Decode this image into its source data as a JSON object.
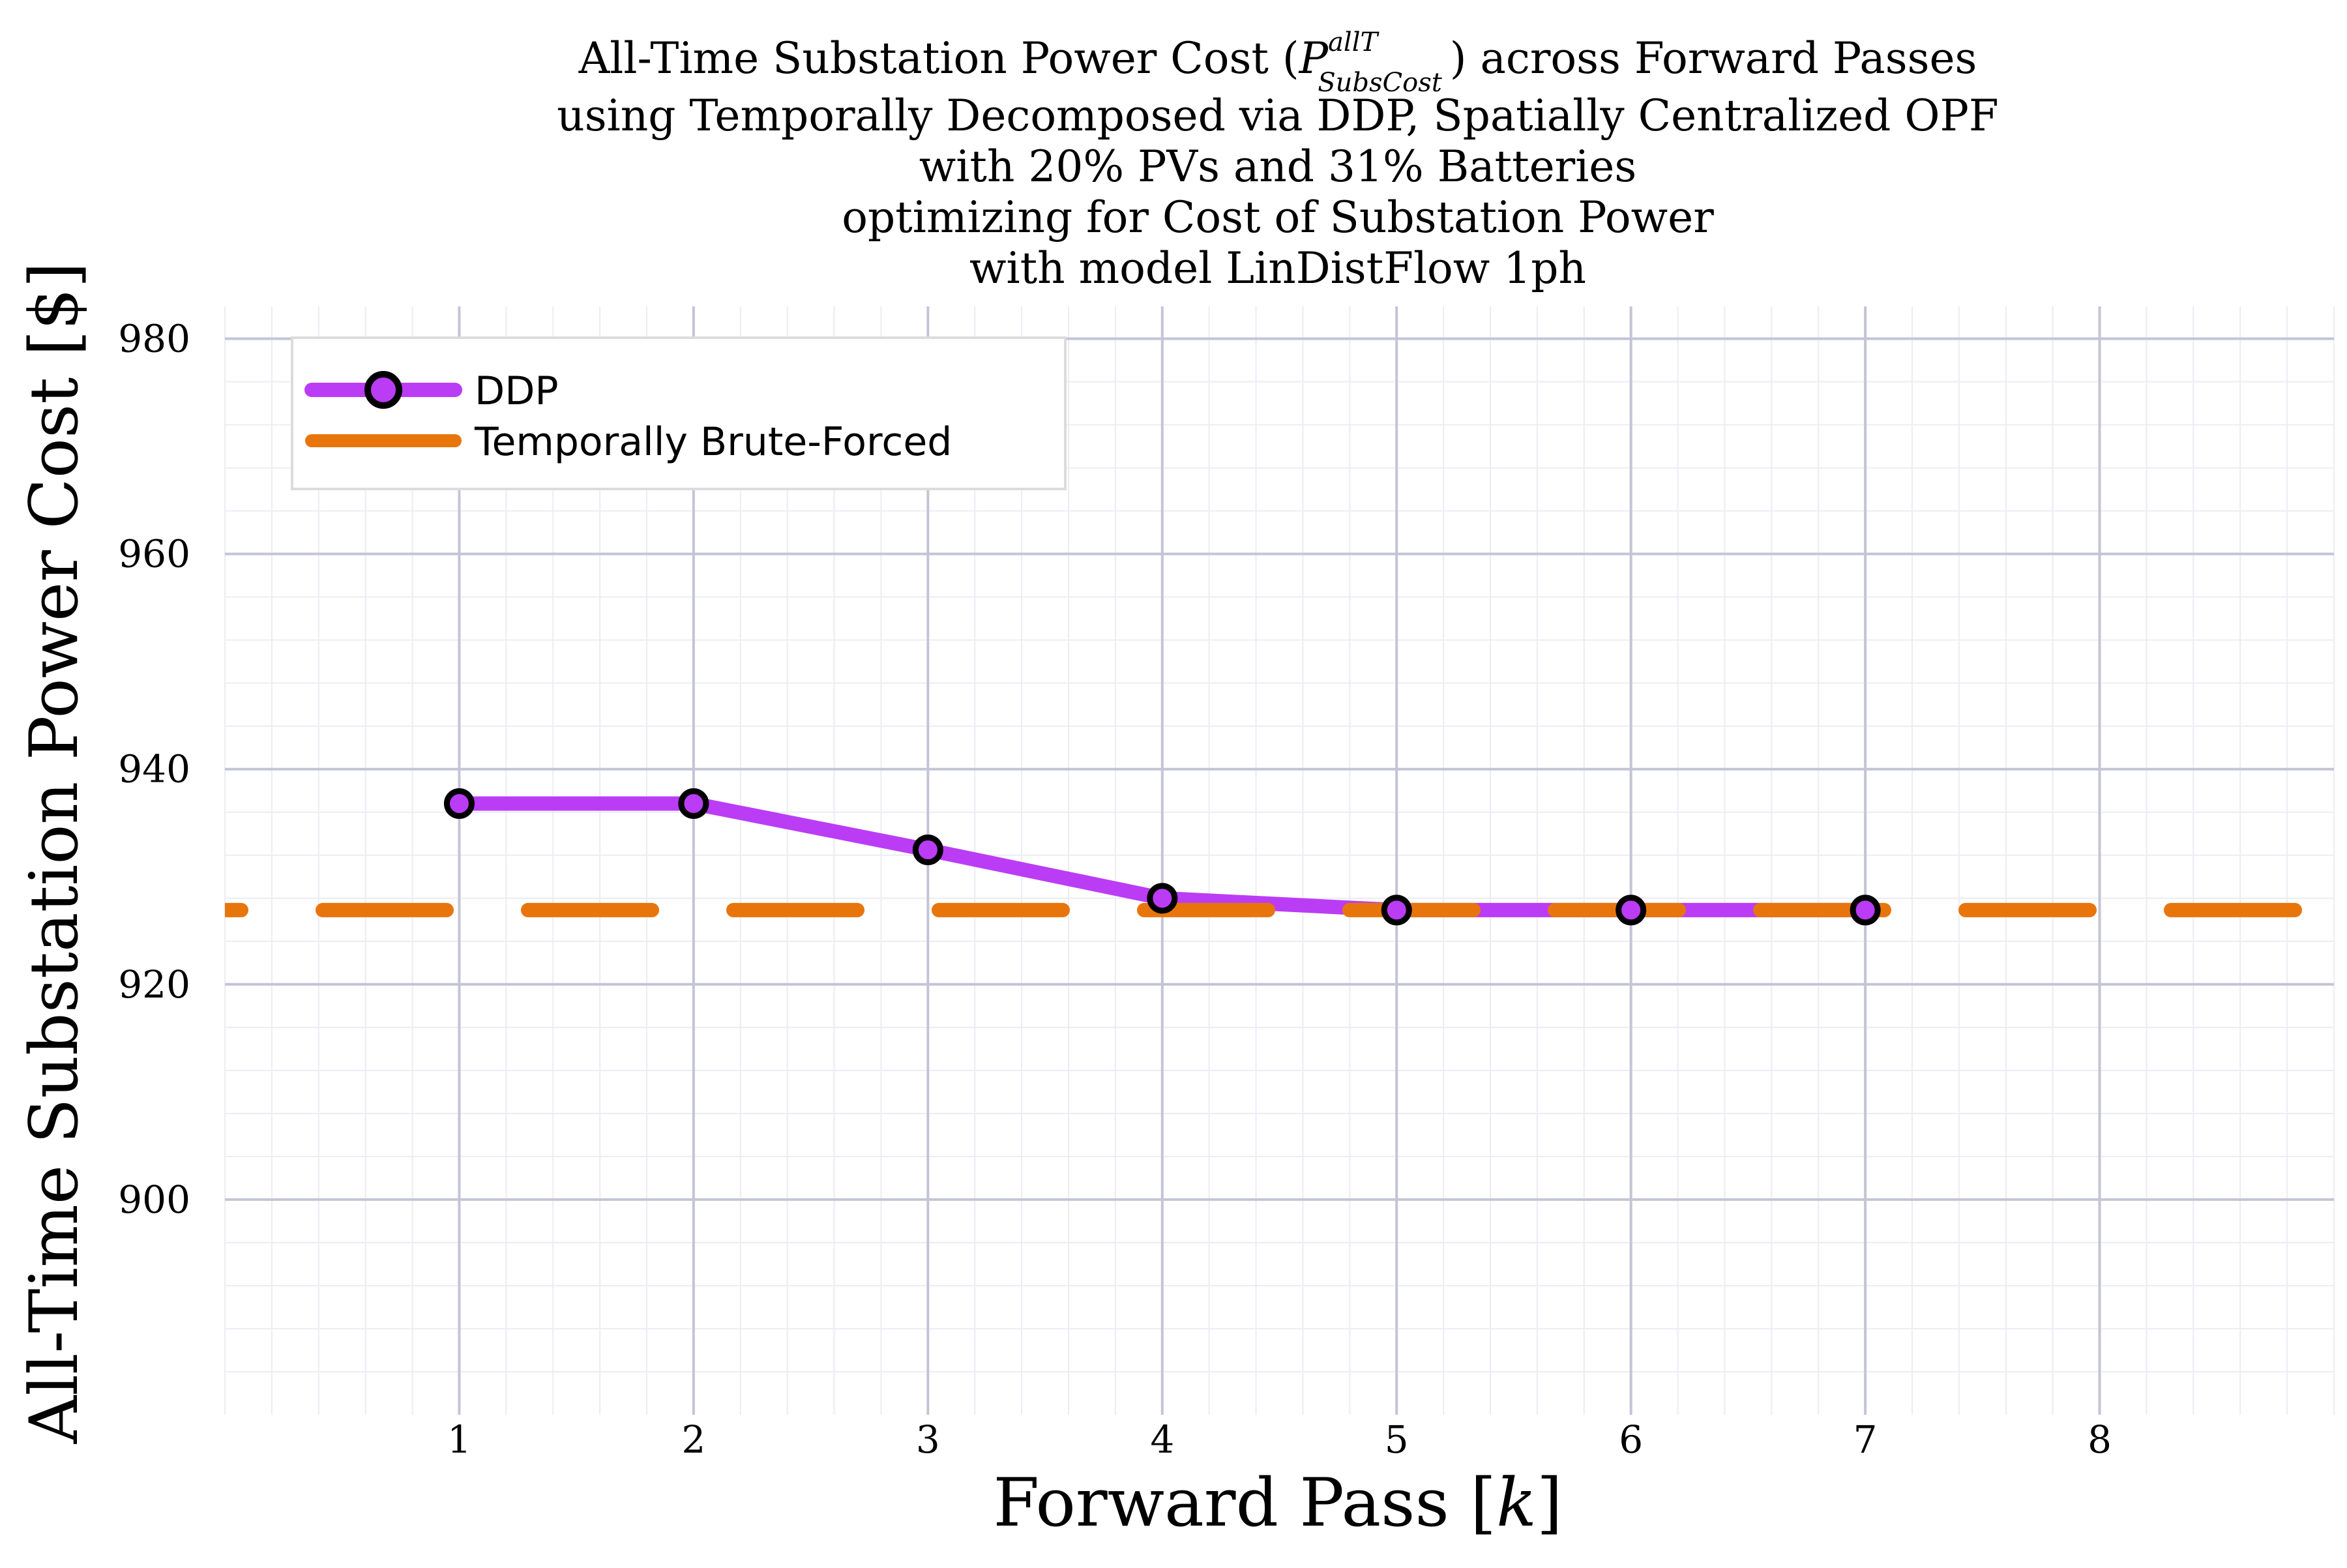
{
  "chart_data": {
    "type": "line",
    "title_lines": {
      "line1_prefix": "All-Time Substation Power Cost (",
      "line1_symbol": "P",
      "line1_sup": "allT",
      "line1_sub": "SubsCost",
      "line1_suffix": ") across Forward Passes",
      "line2": "using Temporally Decomposed via DDP, Spatially Centralized OPF",
      "line3": "with 20% PVs and 31% Batteries",
      "line4": "optimizing for Cost of Substation Power",
      "line5": "with model LinDistFlow 1ph"
    },
    "xlabel": {
      "text": "Forward Pass [",
      "var": "k",
      "close": "]"
    },
    "ylabel": "All-Time Substation Power Cost [$]",
    "xlim": [
      0,
      9
    ],
    "ylim": [
      880,
      983
    ],
    "x_ticks": [
      1,
      2,
      3,
      4,
      5,
      6,
      7,
      8
    ],
    "x_tick_labels": [
      "1",
      "2",
      "3",
      "4",
      "5",
      "6",
      "7",
      "8"
    ],
    "y_ticks": [
      900,
      920,
      940,
      960,
      980
    ],
    "y_tick_labels": [
      "900",
      "920",
      "940",
      "960",
      "980"
    ],
    "grid": true,
    "minor_grid": true,
    "legend_position": "top-left",
    "series": [
      {
        "name": "DDP",
        "style": "solid-with-markers",
        "color": "#bb3cf5",
        "marker_color": "#bb3cf5",
        "x": [
          1,
          2,
          3,
          4,
          5,
          6,
          7
        ],
        "values": [
          936.8,
          936.8,
          932.5,
          928.0,
          926.9,
          926.9,
          926.9
        ]
      },
      {
        "name": "Temporally Brute-Forced",
        "style": "dashed",
        "color": "#e8750c",
        "constant_value": 926.9
      }
    ]
  }
}
